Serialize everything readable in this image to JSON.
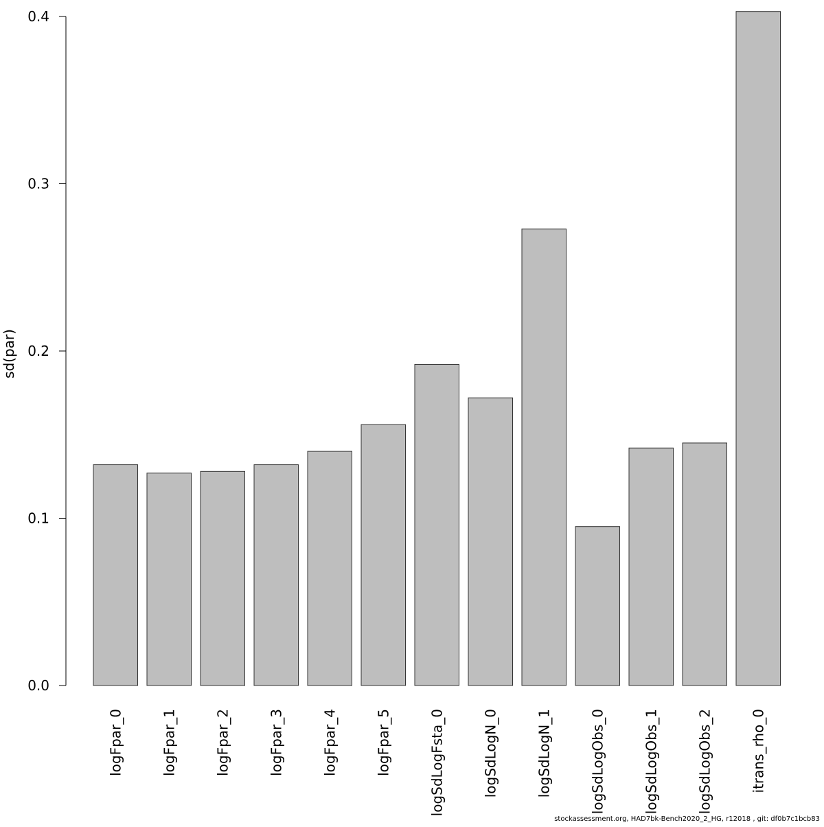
{
  "chart_data": {
    "type": "bar",
    "title": "",
    "xlabel": "",
    "ylabel": "sd(par)",
    "categories": [
      "logFpar_0",
      "logFpar_1",
      "logFpar_2",
      "logFpar_3",
      "logFpar_4",
      "logFpar_5",
      "logSdLogFsta_0",
      "logSdLogN_0",
      "logSdLogN_1",
      "logSdLogObs_0",
      "logSdLogObs_1",
      "logSdLogObs_2",
      "itrans_rho_0"
    ],
    "values": [
      0.132,
      0.127,
      0.128,
      0.132,
      0.14,
      0.156,
      0.192,
      0.172,
      0.273,
      0.095,
      0.142,
      0.145,
      0.403
    ],
    "ylim": [
      0,
      0.4
    ],
    "yticks": [
      "0.0",
      "0.1",
      "0.2",
      "0.3",
      "0.4"
    ],
    "bar_color": "#bebebe",
    "bar_stroke": "#333333",
    "grid": false,
    "legend": "none"
  },
  "footer": "stockassessment.org, HAD7bk-Bench2020_2_HG, r12018 , git: df0b7c1bcb83"
}
